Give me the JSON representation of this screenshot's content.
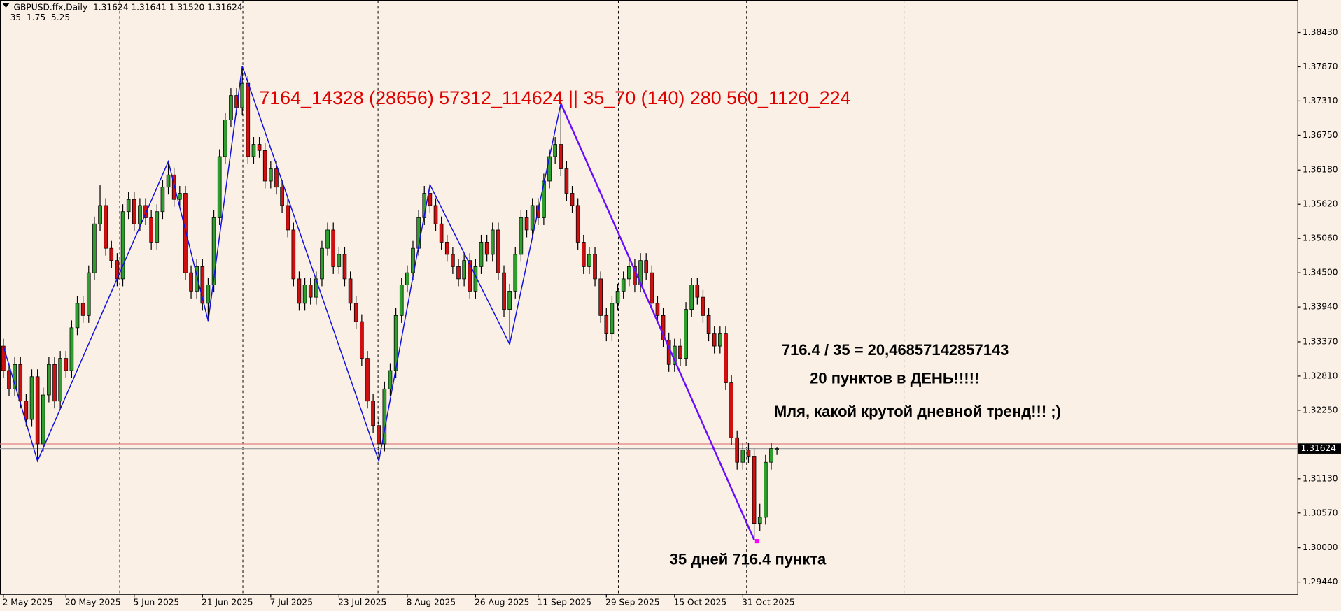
{
  "chart_data": {
    "type": "candlestick",
    "header": {
      "symbol_line": "GBPUSD.ffx,Daily  1.31624 1.31641 1.31520 1.31624",
      "indicator_line": "35  1.75  5.25"
    },
    "up_color": "#2f9e2f",
    "down_color": "#d01010",
    "wick_color": "#000000",
    "xlim": [
      -0.6,
      227.5
    ],
    "ylim": [
      1.29246,
      1.38948
    ],
    "yticks": [
      {
        "value": 1.3843,
        "label": "1.38430"
      },
      {
        "value": 1.3787,
        "label": "1.37870"
      },
      {
        "value": 1.3731,
        "label": "1.37310"
      },
      {
        "value": 1.3675,
        "label": "1.36750"
      },
      {
        "value": 1.3618,
        "label": "1.36180"
      },
      {
        "value": 1.3562,
        "label": "1.35620"
      },
      {
        "value": 1.3506,
        "label": "1.35060"
      },
      {
        "value": 1.345,
        "label": "1.34500"
      },
      {
        "value": 1.3394,
        "label": "1.33940"
      },
      {
        "value": 1.3337,
        "label": "1.33370"
      },
      {
        "value": 1.3281,
        "label": "1.32810"
      },
      {
        "value": 1.3225,
        "label": "1.32250"
      },
      {
        "value": 1.3113,
        "label": "1.31130"
      },
      {
        "value": 1.3057,
        "label": "1.30570"
      },
      {
        "value": 1.3,
        "label": "1.30000"
      },
      {
        "value": 1.2944,
        "label": "1.29440"
      }
    ],
    "xticks": [
      {
        "value": 0,
        "label": "2 May 2025"
      },
      {
        "value": 11,
        "label": "20 May 2025"
      },
      {
        "value": 23,
        "label": "5 Jun 2025"
      },
      {
        "value": 35,
        "label": "21 Jun 2025"
      },
      {
        "value": 47,
        "label": "7 Jul 2025"
      },
      {
        "value": 59,
        "label": "23 Jul 2025"
      },
      {
        "value": 71,
        "label": "8 Aug 2025"
      },
      {
        "value": 83,
        "label": "26 Aug 2025"
      },
      {
        "value": 94,
        "label": "11 Sep 2025"
      },
      {
        "value": 106,
        "label": "29 Sep 2025"
      },
      {
        "value": 118,
        "label": "15 Oct 2025"
      },
      {
        "value": 130,
        "label": "31 Oct 2025"
      }
    ],
    "current_price": 1.31624,
    "ask_line": 1.317,
    "candles": [
      [
        1.333,
        1.3342,
        1.3278,
        1.329
      ],
      [
        1.329,
        1.3302,
        1.3248,
        1.326
      ],
      [
        1.326,
        1.3312,
        1.3248,
        1.33
      ],
      [
        1.33,
        1.3312,
        1.3228,
        1.324
      ],
      [
        1.324,
        1.3252,
        1.3198,
        1.321
      ],
      [
        1.321,
        1.3292,
        1.3198,
        1.328
      ],
      [
        1.328,
        1.3292,
        1.3142,
        1.317
      ],
      [
        1.317,
        1.3262,
        1.3158,
        1.325
      ],
      [
        1.325,
        1.3312,
        1.3238,
        1.33
      ],
      [
        1.33,
        1.3312,
        1.3228,
        1.324
      ],
      [
        1.324,
        1.3322,
        1.3228,
        1.331
      ],
      [
        1.331,
        1.3322,
        1.3278,
        1.329
      ],
      [
        1.329,
        1.3372,
        1.3278,
        1.336
      ],
      [
        1.336,
        1.3412,
        1.3348,
        1.34
      ],
      [
        1.34,
        1.3412,
        1.3368,
        1.338
      ],
      [
        1.338,
        1.3462,
        1.3368,
        1.345
      ],
      [
        1.345,
        1.3542,
        1.3438,
        1.353
      ],
      [
        1.353,
        1.3593,
        1.3518,
        1.356
      ],
      [
        1.356,
        1.3572,
        1.3478,
        1.349
      ],
      [
        1.349,
        1.3502,
        1.3458,
        1.347
      ],
      [
        1.347,
        1.3482,
        1.3428,
        1.344
      ],
      [
        1.344,
        1.3562,
        1.3428,
        1.355
      ],
      [
        1.355,
        1.3582,
        1.3538,
        1.357
      ],
      [
        1.357,
        1.3582,
        1.3518,
        1.353
      ],
      [
        1.353,
        1.3572,
        1.3518,
        1.356
      ],
      [
        1.356,
        1.3572,
        1.3528,
        1.354
      ],
      [
        1.354,
        1.3552,
        1.3488,
        1.35
      ],
      [
        1.35,
        1.3562,
        1.3488,
        1.355
      ],
      [
        1.355,
        1.3602,
        1.3538,
        1.359
      ],
      [
        1.359,
        1.3632,
        1.3578,
        1.361
      ],
      [
        1.361,
        1.3622,
        1.3558,
        1.357
      ],
      [
        1.357,
        1.3592,
        1.3558,
        1.358
      ],
      [
        1.358,
        1.3592,
        1.3438,
        1.345
      ],
      [
        1.345,
        1.3462,
        1.3408,
        1.342
      ],
      [
        1.342,
        1.3472,
        1.3408,
        1.346
      ],
      [
        1.346,
        1.3472,
        1.3388,
        1.34
      ],
      [
        1.34,
        1.3442,
        1.3371,
        1.343
      ],
      [
        1.343,
        1.3552,
        1.3418,
        1.354
      ],
      [
        1.354,
        1.3652,
        1.3528,
        1.364
      ],
      [
        1.364,
        1.3712,
        1.3628,
        1.37
      ],
      [
        1.37,
        1.3752,
        1.3688,
        1.374
      ],
      [
        1.374,
        1.3752,
        1.3708,
        1.372
      ],
      [
        1.372,
        1.3788,
        1.3708,
        1.376
      ],
      [
        1.376,
        1.3772,
        1.3628,
        1.364
      ],
      [
        1.364,
        1.3672,
        1.3628,
        1.366
      ],
      [
        1.366,
        1.3672,
        1.3638,
        1.365
      ],
      [
        1.365,
        1.3662,
        1.3588,
        1.36
      ],
      [
        1.36,
        1.3632,
        1.3588,
        1.362
      ],
      [
        1.362,
        1.3632,
        1.3578,
        1.359
      ],
      [
        1.359,
        1.3602,
        1.3548,
        1.356
      ],
      [
        1.356,
        1.3572,
        1.3508,
        1.352
      ],
      [
        1.352,
        1.3532,
        1.3428,
        1.344
      ],
      [
        1.344,
        1.3452,
        1.3388,
        1.34
      ],
      [
        1.34,
        1.3442,
        1.3388,
        1.343
      ],
      [
        1.343,
        1.3442,
        1.3398,
        1.341
      ],
      [
        1.341,
        1.3452,
        1.3398,
        1.344
      ],
      [
        1.344,
        1.3502,
        1.3428,
        1.349
      ],
      [
        1.349,
        1.3532,
        1.3478,
        1.352
      ],
      [
        1.352,
        1.3532,
        1.3448,
        1.346
      ],
      [
        1.346,
        1.3492,
        1.3448,
        1.348
      ],
      [
        1.348,
        1.3492,
        1.3428,
        1.344
      ],
      [
        1.344,
        1.3452,
        1.3388,
        1.34
      ],
      [
        1.34,
        1.3412,
        1.3358,
        1.337
      ],
      [
        1.337,
        1.3382,
        1.3298,
        1.331
      ],
      [
        1.331,
        1.3322,
        1.3228,
        1.324
      ],
      [
        1.324,
        1.3252,
        1.3188,
        1.32
      ],
      [
        1.32,
        1.3212,
        1.3142,
        1.317
      ],
      [
        1.317,
        1.3272,
        1.3158,
        1.326
      ],
      [
        1.326,
        1.3302,
        1.3248,
        1.329
      ],
      [
        1.329,
        1.3392,
        1.3278,
        1.338
      ],
      [
        1.338,
        1.3442,
        1.3368,
        1.343
      ],
      [
        1.343,
        1.3462,
        1.3418,
        1.345
      ],
      [
        1.345,
        1.3502,
        1.3438,
        1.349
      ],
      [
        1.349,
        1.3552,
        1.3478,
        1.354
      ],
      [
        1.354,
        1.3592,
        1.3528,
        1.358
      ],
      [
        1.358,
        1.3594,
        1.3548,
        1.356
      ],
      [
        1.356,
        1.3572,
        1.3518,
        1.353
      ],
      [
        1.353,
        1.3542,
        1.3488,
        1.35
      ],
      [
        1.35,
        1.3512,
        1.3468,
        1.348
      ],
      [
        1.348,
        1.3492,
        1.3448,
        1.346
      ],
      [
        1.346,
        1.3472,
        1.3428,
        1.344
      ],
      [
        1.344,
        1.3482,
        1.3428,
        1.347
      ],
      [
        1.347,
        1.3482,
        1.3408,
        1.342
      ],
      [
        1.342,
        1.3472,
        1.3408,
        1.346
      ],
      [
        1.346,
        1.3512,
        1.3448,
        1.35
      ],
      [
        1.35,
        1.3512,
        1.3468,
        1.348
      ],
      [
        1.348,
        1.3532,
        1.3468,
        1.352
      ],
      [
        1.352,
        1.3532,
        1.3438,
        1.345
      ],
      [
        1.345,
        1.3462,
        1.3378,
        1.339
      ],
      [
        1.339,
        1.3432,
        1.3333,
        1.342
      ],
      [
        1.342,
        1.3492,
        1.3408,
        1.348
      ],
      [
        1.348,
        1.3552,
        1.3468,
        1.354
      ],
      [
        1.354,
        1.3552,
        1.3508,
        1.352
      ],
      [
        1.352,
        1.3572,
        1.3508,
        1.356
      ],
      [
        1.356,
        1.3572,
        1.3528,
        1.354
      ],
      [
        1.354,
        1.3612,
        1.3528,
        1.36
      ],
      [
        1.36,
        1.3652,
        1.3588,
        1.364
      ],
      [
        1.364,
        1.3672,
        1.3628,
        1.366
      ],
      [
        1.366,
        1.3727,
        1.3608,
        1.362
      ],
      [
        1.362,
        1.3632,
        1.3568,
        1.358
      ],
      [
        1.358,
        1.3592,
        1.3548,
        1.356
      ],
      [
        1.356,
        1.3572,
        1.3488,
        1.35
      ],
      [
        1.35,
        1.3512,
        1.3448,
        1.346
      ],
      [
        1.346,
        1.3492,
        1.3448,
        1.348
      ],
      [
        1.348,
        1.3492,
        1.3428,
        1.344
      ],
      [
        1.344,
        1.3452,
        1.3368,
        1.338
      ],
      [
        1.338,
        1.3392,
        1.3338,
        1.335
      ],
      [
        1.335,
        1.3412,
        1.3338,
        1.34
      ],
      [
        1.34,
        1.3432,
        1.3388,
        1.342
      ],
      [
        1.342,
        1.3452,
        1.3408,
        1.344
      ],
      [
        1.344,
        1.3472,
        1.3428,
        1.346
      ],
      [
        1.346,
        1.3472,
        1.3418,
        1.343
      ],
      [
        1.343,
        1.3482,
        1.3418,
        1.347
      ],
      [
        1.347,
        1.3482,
        1.3438,
        1.345
      ],
      [
        1.345,
        1.3462,
        1.3388,
        1.34
      ],
      [
        1.34,
        1.3412,
        1.3368,
        1.338
      ],
      [
        1.338,
        1.3392,
        1.3328,
        1.334
      ],
      [
        1.334,
        1.3352,
        1.3288,
        1.33
      ],
      [
        1.33,
        1.3342,
        1.3288,
        1.333
      ],
      [
        1.333,
        1.3342,
        1.3298,
        1.331
      ],
      [
        1.331,
        1.3402,
        1.3298,
        1.339
      ],
      [
        1.339,
        1.3442,
        1.3378,
        1.343
      ],
      [
        1.343,
        1.3442,
        1.3398,
        1.341
      ],
      [
        1.341,
        1.3422,
        1.3368,
        1.338
      ],
      [
        1.338,
        1.3392,
        1.3338,
        1.335
      ],
      [
        1.335,
        1.3362,
        1.3318,
        1.333
      ],
      [
        1.333,
        1.3362,
        1.3318,
        1.335
      ],
      [
        1.335,
        1.3362,
        1.3258,
        1.327
      ],
      [
        1.327,
        1.3282,
        1.3168,
        1.318
      ],
      [
        1.318,
        1.3192,
        1.3128,
        1.314
      ],
      [
        1.314,
        1.3172,
        1.3128,
        1.316
      ],
      [
        1.316,
        1.3172,
        1.3138,
        1.315
      ],
      [
        1.315,
        1.3162,
        1.3013,
        1.304
      ],
      [
        1.304,
        1.3072,
        1.3028,
        1.305
      ],
      [
        1.305,
        1.3152,
        1.3038,
        1.314
      ],
      [
        1.314,
        1.3172,
        1.3128,
        1.31624
      ],
      [
        1.31624,
        1.31641,
        1.3152,
        1.31624
      ]
    ],
    "zigzag": {
      "color": "#1010e0",
      "x": [
        0,
        6,
        29,
        36,
        42,
        66,
        75,
        89,
        98,
        132
      ],
      "values": [
        1.333,
        1.3142,
        1.3632,
        1.3371,
        1.3788,
        1.3142,
        1.3594,
        1.3333,
        1.3727,
        1.3013
      ]
    },
    "trendline": {
      "color": "#6a0dff",
      "x": [
        98,
        132
      ],
      "values": [
        1.3727,
        1.3013
      ]
    },
    "annotations": {
      "levels": "7164_14328 (28656) 57312_114624 || 35_70 (140) 280 560_1120_224",
      "calc": "716.4 / 35 = 20,46857142857143",
      "per_day": "20 пунктов в ДЕНЬ!!!!!",
      "comment": "Мля, какой крутой дневной тренд!!! ;)",
      "summary": "35 дней 716.4 пункта"
    }
  }
}
